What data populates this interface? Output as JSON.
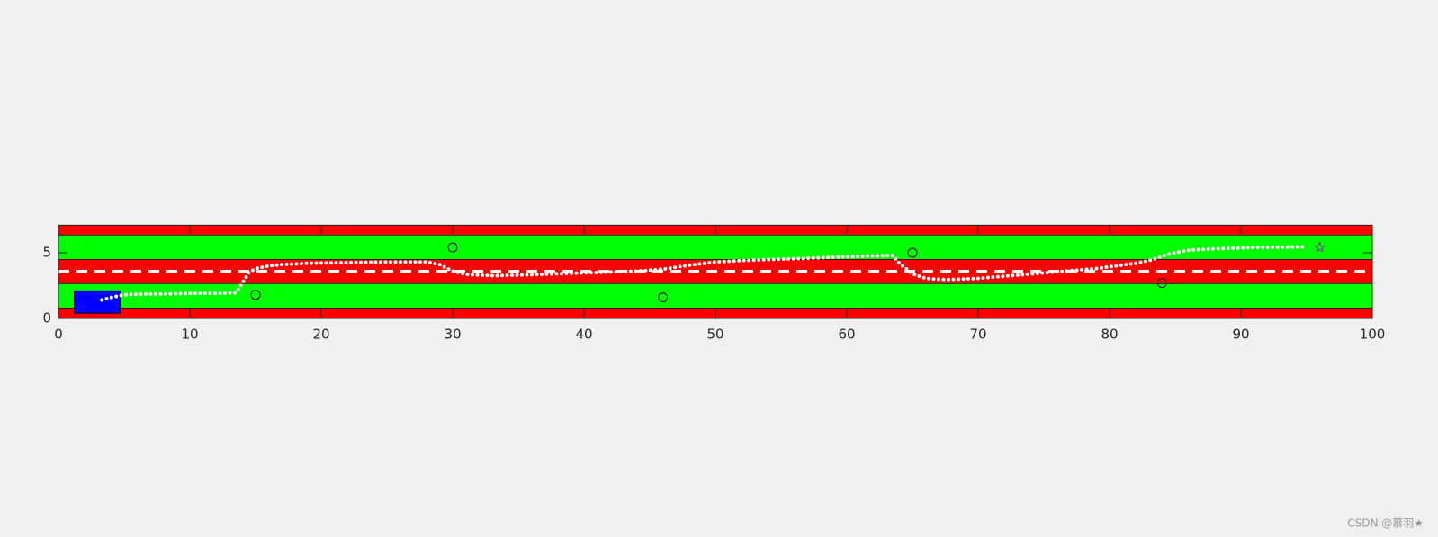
{
  "chart_data": {
    "type": "road",
    "xlim": [
      0,
      100
    ],
    "ylim": [
      0,
      7.1
    ],
    "xticks": [
      0,
      10,
      20,
      30,
      40,
      50,
      60,
      70,
      80,
      90,
      100
    ],
    "yticks": [
      0,
      5
    ],
    "bands": [
      {
        "y0": 0,
        "y1": 0.8,
        "color": "#ff0000"
      },
      {
        "y0": 0.8,
        "y1": 2.65,
        "color": "#00ff00"
      },
      {
        "y0": 2.65,
        "y1": 4.5,
        "color": "#ff0000"
      },
      {
        "y0": 4.5,
        "y1": 6.35,
        "color": "#00ff00"
      },
      {
        "y0": 6.35,
        "y1": 7.1,
        "color": "#ff0000"
      }
    ],
    "center_line": 3.6,
    "vehicle": {
      "x0": 1.2,
      "x1": 4.7,
      "y0": 0.4,
      "y1": 2.1,
      "color": "#0000ff"
    },
    "obstacles": {
      "x": [
        15,
        30,
        46,
        65,
        84
      ],
      "y": [
        1.8,
        5.4,
        1.6,
        5.0,
        2.7
      ]
    },
    "goal": {
      "x": 96,
      "y": 5.4
    },
    "path": {
      "color": "#ffffff",
      "x": [
        3.3,
        4,
        5,
        6,
        8,
        10,
        12,
        13.5,
        14,
        14.5,
        15,
        16,
        17,
        19,
        22,
        25,
        28,
        29,
        30,
        31,
        33,
        35,
        38,
        41,
        44,
        46,
        48,
        50,
        53,
        56,
        60,
        63.5,
        64,
        65,
        66,
        67.5,
        70,
        73,
        76,
        79,
        82,
        83,
        84.5,
        86,
        88,
        91,
        95
      ],
      "y": [
        1.4,
        1.6,
        1.8,
        1.85,
        1.85,
        1.9,
        1.9,
        1.95,
        2.7,
        3.5,
        3.8,
        4.0,
        4.1,
        4.2,
        4.25,
        4.3,
        4.3,
        4.1,
        3.6,
        3.35,
        3.25,
        3.3,
        3.4,
        3.5,
        3.6,
        3.75,
        4.05,
        4.3,
        4.45,
        4.55,
        4.7,
        4.8,
        4.2,
        3.4,
        3.05,
        2.95,
        3.05,
        3.3,
        3.55,
        3.8,
        4.2,
        4.4,
        4.9,
        5.2,
        5.3,
        5.4,
        5.45
      ]
    },
    "watermark": "CSDN @慕羽★"
  }
}
